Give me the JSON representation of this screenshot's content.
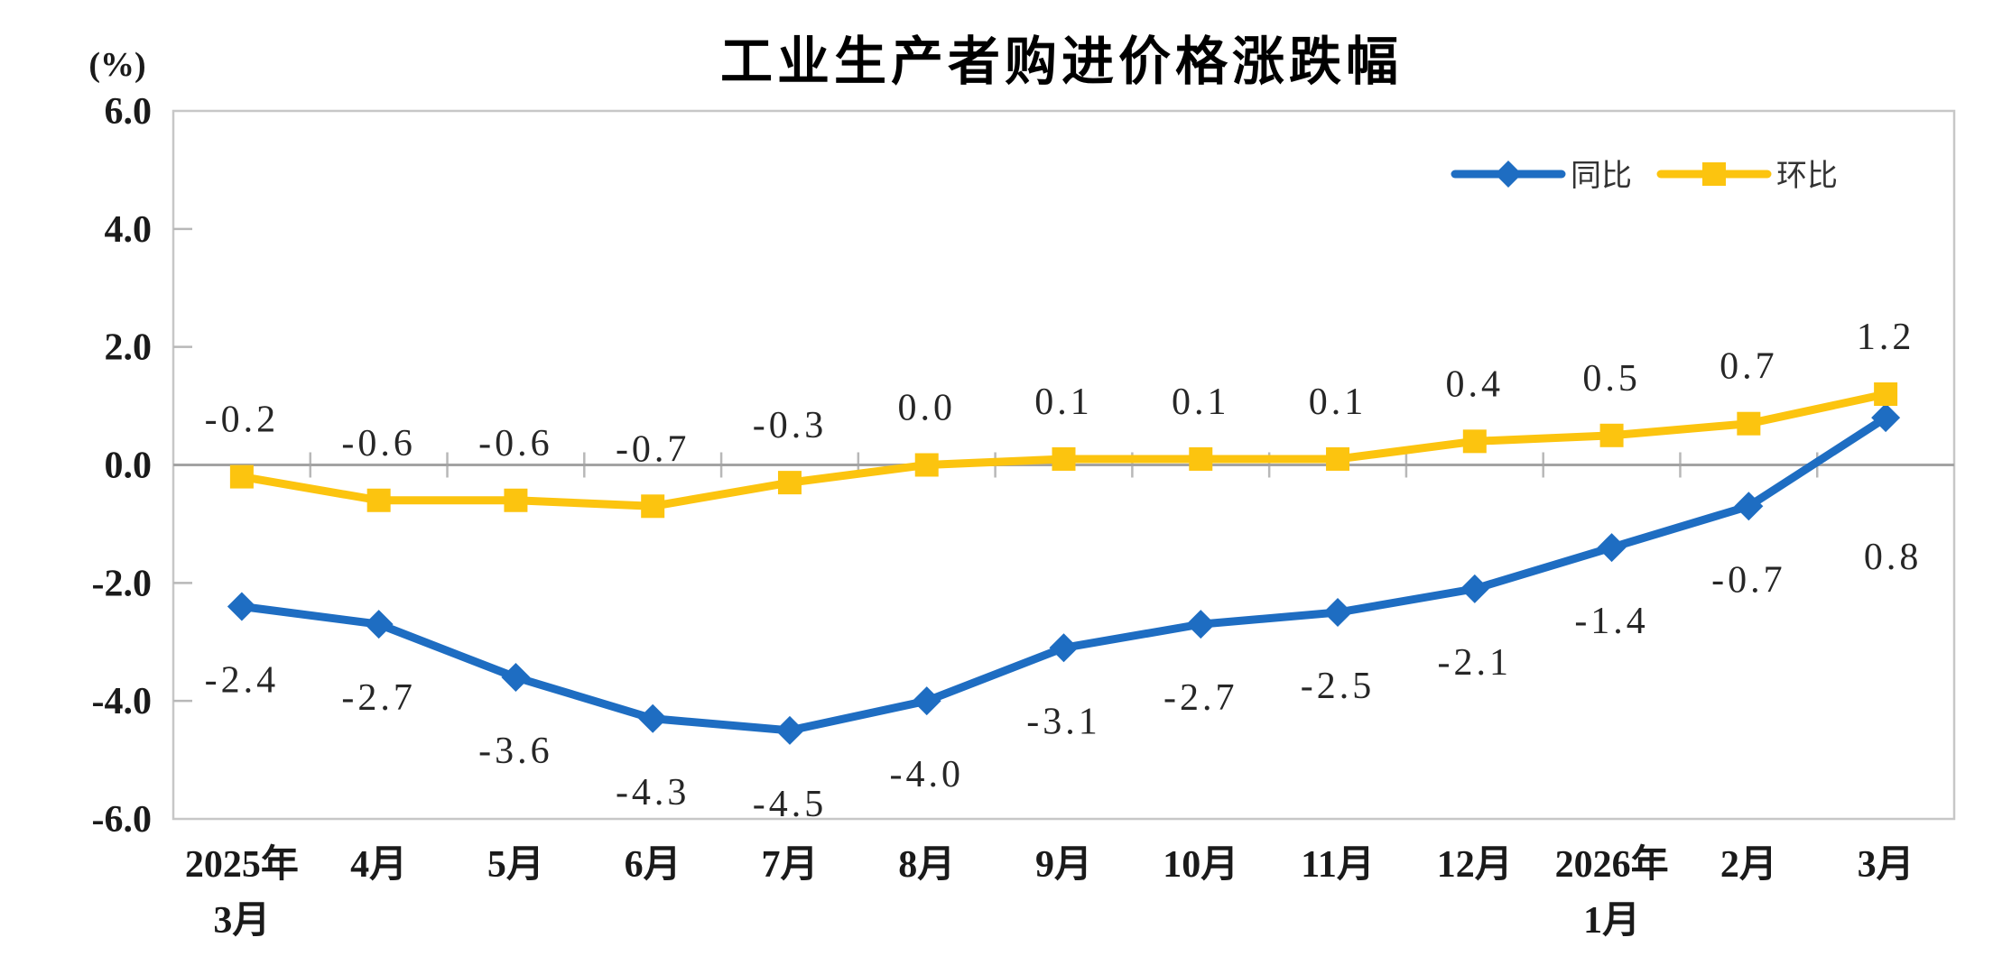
{
  "chart_data": {
    "type": "line",
    "title": "工业生产者购进价格涨跌幅",
    "y_axis_unit": "(%)",
    "categories": [
      "2025年3月",
      "4月",
      "5月",
      "6月",
      "7月",
      "8月",
      "9月",
      "10月",
      "11月",
      "12月",
      "2026年1月",
      "2月",
      "3月"
    ],
    "category_label_lines": [
      [
        "2025年",
        "3月"
      ],
      [
        "4月"
      ],
      [
        "5月"
      ],
      [
        "6月"
      ],
      [
        "7月"
      ],
      [
        "8月"
      ],
      [
        "9月"
      ],
      [
        "10月"
      ],
      [
        "11月"
      ],
      [
        "12月"
      ],
      [
        "2026年",
        "1月"
      ],
      [
        "2月"
      ],
      [
        "3月"
      ]
    ],
    "series": [
      {
        "name": "同比",
        "marker": "diamond",
        "color": "#1e6dc2",
        "values": [
          -2.4,
          -2.7,
          -3.6,
          -4.3,
          -4.5,
          -4.0,
          -3.1,
          -2.7,
          -2.5,
          -2.1,
          -1.4,
          -0.7,
          0.8
        ],
        "labels": [
          "-2.4",
          "-2.7",
          "-3.6",
          "-4.3",
          "-4.5",
          "-4.0",
          "-3.1",
          "-2.7",
          "-2.5",
          "-2.1",
          "-1.4",
          "-0.7",
          "0.8"
        ],
        "label_position": "below"
      },
      {
        "name": "环比",
        "marker": "square",
        "color": "#fcc40f",
        "values": [
          -0.2,
          -0.6,
          -0.6,
          -0.7,
          -0.3,
          0.0,
          0.1,
          0.1,
          0.1,
          0.4,
          0.5,
          0.7,
          1.2
        ],
        "labels": [
          "-0.2",
          "-0.6",
          "-0.6",
          "-0.7",
          "-0.3",
          "0.0",
          "0.1",
          "0.1",
          "0.1",
          "0.4",
          "0.5",
          "0.7",
          "1.2"
        ],
        "label_position": "above"
      }
    ],
    "ylim": [
      -6,
      6
    ],
    "y_ticks": [
      "6.0",
      "4.0",
      "2.0",
      "0.0",
      "-2.0",
      "-4.0",
      "-6.0"
    ],
    "grid": false,
    "legend_position": "top-right",
    "colors": {
      "plot_border": "#c7c7c7",
      "zero_line": "#a3a3a3",
      "tick": "#b8b8b8",
      "text": "#1a1a1a",
      "data_label": "#262626"
    }
  }
}
